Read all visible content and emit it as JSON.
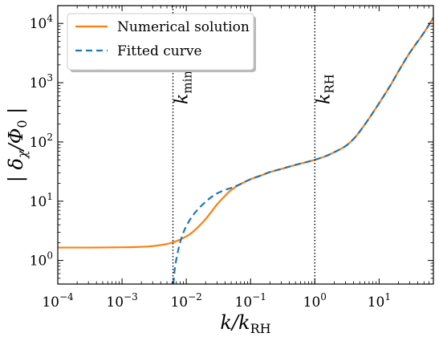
{
  "chart_data": {
    "type": "line",
    "xlabel": {
      "main": "k/k",
      "sub": "RH"
    },
    "ylabel": {
      "main": "| δ",
      "sub": "χ",
      "rest": "/Φ",
      "sub2": "0",
      "end": " |"
    },
    "x_scale": "log",
    "y_scale": "log",
    "xlim": [
      0.0001,
      70
    ],
    "ylim": [
      0.4,
      20000
    ],
    "x_ticks": [
      {
        "value": 0.0001,
        "base": "10",
        "exp": "−4"
      },
      {
        "value": 0.001,
        "base": "10",
        "exp": "−3"
      },
      {
        "value": 0.01,
        "base": "10",
        "exp": "−2"
      },
      {
        "value": 0.1,
        "base": "10",
        "exp": "−1"
      },
      {
        "value": 1,
        "base": "10",
        "exp": "0"
      },
      {
        "value": 10,
        "base": "10",
        "exp": "1"
      }
    ],
    "y_ticks": [
      {
        "value": 1,
        "base": "10",
        "exp": "0"
      },
      {
        "value": 10,
        "base": "10",
        "exp": "1"
      },
      {
        "value": 100,
        "base": "10",
        "exp": "2"
      },
      {
        "value": 1000,
        "base": "10",
        "exp": "3"
      },
      {
        "value": 10000,
        "base": "10",
        "exp": "4"
      }
    ],
    "legend": {
      "placement": "top-left"
    },
    "series": [
      {
        "name": "Numerical solution",
        "color": "#ff7f0e",
        "style": "solid",
        "x": [
          0.0001,
          0.0003,
          0.001,
          0.002,
          0.003,
          0.004,
          0.005,
          0.006,
          0.007,
          0.008,
          0.01,
          0.012,
          0.015,
          0.02,
          0.025,
          0.03,
          0.04,
          0.05,
          0.07,
          0.1,
          0.15,
          0.2,
          0.3,
          0.5,
          0.7,
          1.0,
          1.5,
          2.0,
          3.0,
          4.0,
          5.0,
          7.0,
          10,
          15,
          20,
          30,
          50,
          70
        ],
        "y": [
          1.65,
          1.65,
          1.67,
          1.7,
          1.75,
          1.82,
          1.9,
          2.0,
          2.12,
          2.25,
          2.55,
          2.9,
          3.6,
          5.0,
          6.8,
          8.8,
          12.3,
          15.5,
          19.5,
          23.5,
          27.5,
          31,
          35,
          41,
          45,
          50,
          58,
          67,
          85,
          112,
          150,
          250,
          450,
          900,
          1550,
          3200,
          7000,
          12500
        ]
      },
      {
        "name": "Fitted curve",
        "color": "#1f77b4",
        "style": "dashed",
        "x": [
          0.0063,
          0.0066,
          0.007,
          0.0075,
          0.008,
          0.009,
          0.01,
          0.012,
          0.015,
          0.02,
          0.025,
          0.03,
          0.04,
          0.05,
          0.07,
          0.1,
          0.15,
          0.2,
          0.3,
          0.5,
          0.7,
          1.0,
          1.5,
          2.0,
          3.0,
          4.0,
          5.0,
          7.0,
          10,
          15,
          20,
          30,
          50,
          70
        ],
        "y": [
          0.4,
          0.7,
          1.05,
          1.5,
          2.0,
          2.95,
          3.8,
          5.3,
          7.2,
          9.8,
          11.9,
          13.5,
          15.5,
          16.8,
          19.5,
          23.5,
          27.5,
          31,
          35,
          41,
          45,
          50,
          58,
          67,
          85,
          112,
          150,
          250,
          450,
          900,
          1550,
          3200,
          7000,
          12500
        ]
      }
    ],
    "vlines": [
      {
        "x": 0.0062,
        "style": "dotted",
        "label_main": "k",
        "label_sub": "min"
      },
      {
        "x": 1.0,
        "style": "dotted",
        "label_main": "k",
        "label_sub": "RH"
      }
    ]
  }
}
